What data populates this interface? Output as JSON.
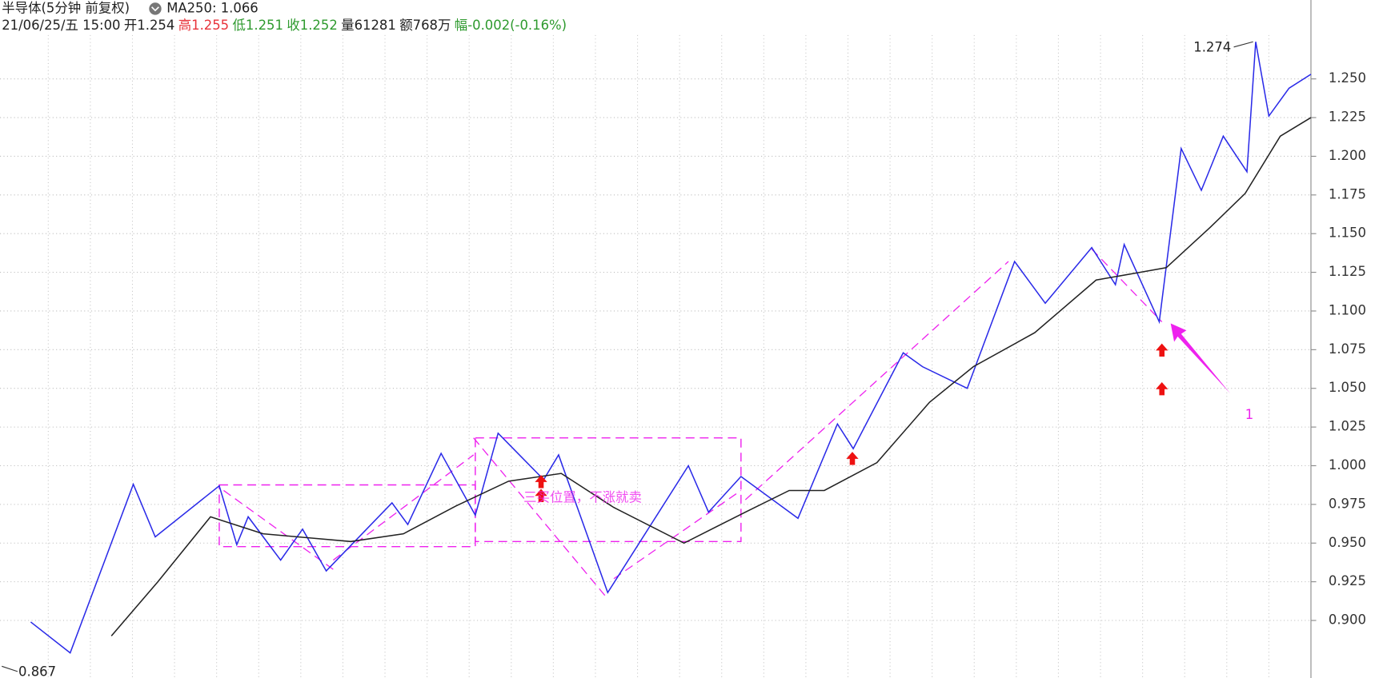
{
  "chart_data": {
    "type": "line",
    "title": "半导体(5分钟 前复权)",
    "ma_label": "MA250: 1.066",
    "info": [
      "21/06/25/五 15:00",
      "开1.254",
      "高1.255",
      "低1.251",
      "收1.252",
      "量61281",
      "额768万",
      "幅-0.002(-0.16%)"
    ],
    "info_colors": [
      "#222222",
      "#222222",
      "#e8333a",
      "#2e9a2e",
      "#2e9a2e",
      "#222222",
      "#222222",
      "#2e9a2e"
    ],
    "xlim": [
      0,
      1495
    ],
    "ylim": [
      0.8628,
      1.301
    ],
    "yticks": [
      {
        "value": 0.9,
        "label": "0.900"
      },
      {
        "value": 0.925,
        "label": "0.925"
      },
      {
        "value": 0.95,
        "label": "0.950"
      },
      {
        "value": 0.975,
        "label": "0.975"
      },
      {
        "value": 1.0,
        "label": "1.000"
      },
      {
        "value": 1.025,
        "label": "1.025"
      },
      {
        "value": 1.05,
        "label": "1.050"
      },
      {
        "value": 1.075,
        "label": "1.075"
      },
      {
        "value": 1.1,
        "label": "1.100"
      },
      {
        "value": 1.125,
        "label": "1.125"
      },
      {
        "value": 1.15,
        "label": "1.150"
      },
      {
        "value": 1.175,
        "label": "1.175"
      },
      {
        "value": 1.2,
        "label": "1.200"
      },
      {
        "value": 1.225,
        "label": "1.225"
      },
      {
        "value": 1.25,
        "label": "1.250"
      }
    ],
    "grid": true,
    "series": [
      {
        "color": "#2a2ae8",
        "x": [
          35,
          80,
          152,
          177,
          250,
          270,
          283,
          320,
          345,
          372,
          447,
          465,
          503,
          542,
          568,
          620,
          637,
          693,
          785,
          808,
          845,
          910,
          955,
          973,
          1030,
          1052,
          1103,
          1157,
          1192,
          1245,
          1272,
          1282,
          1322,
          1347,
          1370,
          1395,
          1422,
          1432,
          1447,
          1470,
          1495
        ],
        "values": [
          0.899,
          0.879,
          0.988,
          0.954,
          0.987,
          0.949,
          0.967,
          0.939,
          0.959,
          0.932,
          0.976,
          0.962,
          1.008,
          0.968,
          1.021,
          0.991,
          1.007,
          0.918,
          1.0,
          0.97,
          0.993,
          0.966,
          1.027,
          1.011,
          1.073,
          1.064,
          1.05,
          1.132,
          1.105,
          1.141,
          1.117,
          1.143,
          1.093,
          1.205,
          1.178,
          1.213,
          1.19,
          1.274,
          1.226,
          1.244,
          1.253
        ]
      },
      {
        "color": "#222222",
        "x": [
          127,
          180,
          240,
          300,
          400,
          460,
          520,
          580,
          640,
          700,
          780,
          850,
          900,
          940,
          1000,
          1060,
          1110,
          1180,
          1250,
          1300,
          1330,
          1380,
          1420,
          1460,
          1495
        ],
        "values": [
          0.89,
          0.925,
          0.967,
          0.956,
          0.951,
          0.956,
          0.974,
          0.99,
          0.995,
          0.973,
          0.95,
          0.97,
          0.984,
          0.984,
          1.002,
          1.041,
          1.064,
          1.086,
          1.12,
          1.125,
          1.128,
          1.154,
          1.176,
          1.213,
          1.225
        ]
      }
    ],
    "boxes": [
      {
        "x": [
          250,
          542
        ],
        "values": [
          0.9876,
          0.9477
        ]
      },
      {
        "x": [
          542,
          845
        ],
        "values": [
          1.018,
          0.951
        ]
      }
    ],
    "trendlines": [
      {
        "x": [
          255,
          380
        ],
        "values": [
          0.984,
          0.933
        ]
      },
      {
        "x": [
          380,
          540
        ],
        "values": [
          0.939,
          1.007
        ]
      },
      {
        "x": [
          540,
          690
        ],
        "values": [
          1.018,
          0.916
        ]
      },
      {
        "x": [
          700,
          845
        ],
        "values": [
          0.927,
          0.984
        ]
      },
      {
        "x": [
          850,
          1150
        ],
        "values": [
          0.978,
          1.132
        ]
      },
      {
        "x": [
          1245,
          1325
        ],
        "values": [
          1.14,
          1.093
        ]
      }
    ],
    "buy_arrows": {
      "x": [
        617,
        617,
        972,
        1325,
        1325
      ],
      "values": [
        0.994,
        0.985,
        1.009,
        1.079,
        1.054
      ]
    },
    "high": {
      "x": 1432,
      "value": 1.274
    },
    "low": {
      "x": 0,
      "value": 0.867
    },
    "note": {
      "text": "三买位置，不涨就卖",
      "x": 597,
      "value": 0.979
    },
    "pointer": {
      "text": "1",
      "x": 1335,
      "value": 1.092
    }
  }
}
